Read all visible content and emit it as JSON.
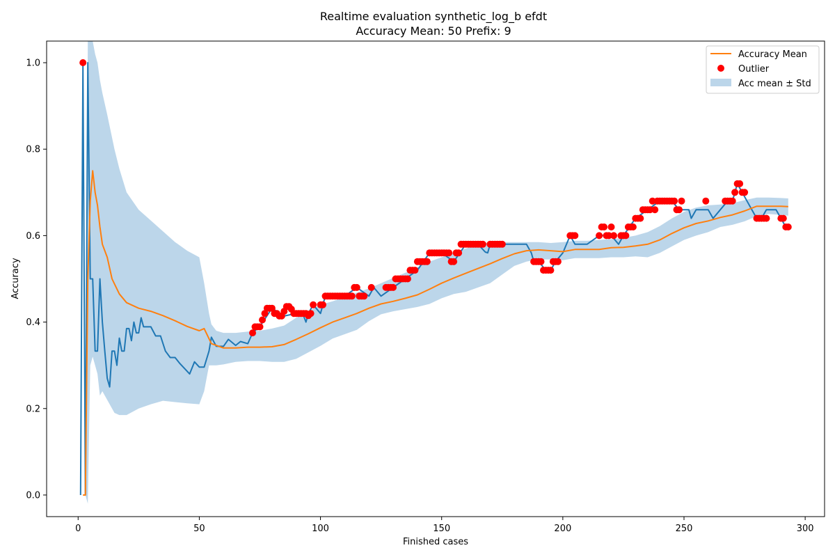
{
  "chart_data": {
    "type": "line",
    "title": "Realtime evaluation synthetic_log_b efdt",
    "subtitle": "Accuracy Mean: 50 Prefix: 9",
    "xlabel": "Finished cases",
    "ylabel": "Accuracy",
    "xlim": [
      -13,
      308
    ],
    "ylim": [
      -0.05,
      1.05
    ],
    "xticks": [
      0,
      50,
      100,
      150,
      200,
      250,
      300
    ],
    "yticks": [
      0.0,
      0.2,
      0.4,
      0.6,
      0.8,
      1.0
    ],
    "xtick_labels": [
      "0",
      "50",
      "100",
      "150",
      "200",
      "250",
      "300"
    ],
    "ytick_labels": [
      "0.0",
      "0.2",
      "0.4",
      "0.6",
      "0.8",
      "1.0"
    ],
    "grid": false,
    "legend_position": "top-right",
    "colors": {
      "accuracy": "#1f77b4",
      "mean": "#ff7f0e",
      "outlier": "#ff0000",
      "band": "#bcd6ea"
    },
    "legend": {
      "mean": "Accuracy Mean",
      "outlier": "Outlier",
      "band": "Acc mean ± Std"
    },
    "series": [
      {
        "key": "accuracy",
        "x": [
          1,
          2,
          3,
          4,
          5,
          6,
          7,
          8,
          9,
          10,
          11,
          12,
          13,
          14,
          15,
          16,
          17,
          18,
          19,
          20,
          21,
          22,
          23,
          24,
          25,
          26,
          27,
          28,
          30,
          32,
          34,
          36,
          38,
          40,
          42,
          44,
          46,
          48,
          50,
          52,
          54,
          55,
          57,
          60,
          62,
          65,
          67,
          70,
          72,
          75,
          80,
          85,
          90,
          93,
          94,
          95,
          97,
          100,
          102,
          105,
          110,
          115,
          120,
          122,
          125,
          130,
          135,
          140,
          145,
          150,
          155,
          160,
          165,
          168,
          169,
          170,
          175,
          180,
          185,
          187,
          188,
          190,
          193,
          195,
          197,
          200,
          203,
          205,
          210,
          215,
          220,
          223,
          225,
          230,
          235,
          240,
          245,
          248,
          250,
          252,
          253,
          255,
          258,
          260,
          262,
          265,
          268,
          270,
          272,
          274,
          276,
          278,
          280,
          282,
          284,
          286,
          288,
          290,
          292,
          293
        ],
        "values": [
          0.0,
          1.0,
          0.0,
          1.0,
          0.5,
          0.5,
          0.333,
          0.333,
          0.5,
          0.4,
          0.333,
          0.27,
          0.25,
          0.333,
          0.333,
          0.3,
          0.363,
          0.333,
          0.333,
          0.385,
          0.385,
          0.357,
          0.4,
          0.375,
          0.375,
          0.41,
          0.389,
          0.389,
          0.389,
          0.368,
          0.368,
          0.333,
          0.318,
          0.318,
          0.304,
          0.292,
          0.28,
          0.308,
          0.296,
          0.296,
          0.333,
          0.365,
          0.344,
          0.344,
          0.36,
          0.346,
          0.355,
          0.35,
          0.375,
          0.39,
          0.432,
          0.414,
          0.42,
          0.415,
          0.4,
          0.42,
          0.44,
          0.42,
          0.46,
          0.46,
          0.46,
          0.48,
          0.46,
          0.48,
          0.46,
          0.48,
          0.5,
          0.52,
          0.56,
          0.56,
          0.54,
          0.58,
          0.58,
          0.562,
          0.56,
          0.58,
          0.58,
          0.58,
          0.58,
          0.56,
          0.54,
          0.54,
          0.52,
          0.52,
          0.54,
          0.56,
          0.6,
          0.58,
          0.58,
          0.6,
          0.6,
          0.58,
          0.6,
          0.64,
          0.66,
          0.68,
          0.68,
          0.66,
          0.66,
          0.66,
          0.64,
          0.66,
          0.66,
          0.66,
          0.64,
          0.66,
          0.68,
          0.68,
          0.72,
          0.7,
          0.68,
          0.66,
          0.64,
          0.64,
          0.66,
          0.66,
          0.66,
          0.64,
          0.62,
          0.62
        ]
      },
      {
        "key": "mean",
        "x": [
          2,
          3,
          4,
          5,
          6,
          7,
          8,
          9,
          10,
          12,
          14,
          17,
          20,
          25,
          30,
          35,
          40,
          45,
          50,
          52,
          55,
          60,
          65,
          70,
          75,
          80,
          85,
          90,
          95,
          100,
          105,
          110,
          115,
          120,
          125,
          130,
          135,
          140,
          145,
          150,
          155,
          160,
          165,
          170,
          175,
          180,
          185,
          190,
          195,
          200,
          205,
          210,
          215,
          220,
          225,
          230,
          235,
          240,
          245,
          250,
          255,
          260,
          265,
          270,
          275,
          280,
          285,
          290,
          293
        ],
        "values": [
          0.0,
          0.0,
          0.5,
          0.68,
          0.75,
          0.7,
          0.67,
          0.62,
          0.58,
          0.55,
          0.5,
          0.465,
          0.445,
          0.432,
          0.425,
          0.415,
          0.403,
          0.39,
          0.38,
          0.385,
          0.35,
          0.34,
          0.34,
          0.342,
          0.342,
          0.343,
          0.348,
          0.36,
          0.373,
          0.387,
          0.4,
          0.41,
          0.42,
          0.432,
          0.442,
          0.448,
          0.455,
          0.463,
          0.476,
          0.49,
          0.502,
          0.513,
          0.524,
          0.535,
          0.547,
          0.558,
          0.565,
          0.567,
          0.565,
          0.563,
          0.568,
          0.568,
          0.568,
          0.572,
          0.573,
          0.576,
          0.58,
          0.59,
          0.605,
          0.618,
          0.628,
          0.634,
          0.642,
          0.648,
          0.657,
          0.668,
          0.668,
          0.668,
          0.667
        ]
      },
      {
        "key": "band",
        "x": [
          2,
          3,
          4,
          5,
          6,
          7,
          8,
          9,
          10,
          12,
          15,
          17,
          20,
          25,
          30,
          35,
          40,
          45,
          50,
          52,
          54,
          55,
          57,
          60,
          65,
          70,
          75,
          80,
          85,
          90,
          95,
          100,
          105,
          110,
          115,
          120,
          125,
          130,
          135,
          140,
          145,
          150,
          155,
          160,
          165,
          170,
          175,
          180,
          185,
          190,
          195,
          200,
          205,
          210,
          215,
          220,
          225,
          230,
          235,
          240,
          245,
          250,
          255,
          260,
          265,
          270,
          275,
          280,
          285,
          290,
          293
        ],
        "upper": [
          0.0,
          0.0,
          1.05,
          1.08,
          1.05,
          1.02,
          1.0,
          0.96,
          0.93,
          0.88,
          0.8,
          0.755,
          0.7,
          0.66,
          0.635,
          0.61,
          0.585,
          0.565,
          0.55,
          0.49,
          0.42,
          0.395,
          0.38,
          0.375,
          0.375,
          0.378,
          0.38,
          0.385,
          0.392,
          0.41,
          0.425,
          0.44,
          0.448,
          0.458,
          0.468,
          0.478,
          0.49,
          0.502,
          0.514,
          0.527,
          0.54,
          0.55,
          0.56,
          0.57,
          0.58,
          0.585,
          0.585,
          0.585,
          0.585,
          0.585,
          0.583,
          0.585,
          0.588,
          0.588,
          0.59,
          0.592,
          0.595,
          0.6,
          0.608,
          0.622,
          0.64,
          0.655,
          0.665,
          0.67,
          0.672,
          0.675,
          0.682,
          0.688,
          0.688,
          0.687,
          0.686
        ],
        "lower": [
          0.0,
          0.0,
          -0.02,
          0.3,
          0.32,
          0.3,
          0.28,
          0.23,
          0.24,
          0.22,
          0.19,
          0.185,
          0.185,
          0.2,
          0.21,
          0.218,
          0.215,
          0.212,
          0.21,
          0.24,
          0.3,
          0.3,
          0.3,
          0.302,
          0.308,
          0.31,
          0.31,
          0.308,
          0.308,
          0.315,
          0.33,
          0.345,
          0.362,
          0.372,
          0.382,
          0.402,
          0.418,
          0.425,
          0.43,
          0.435,
          0.442,
          0.455,
          0.465,
          0.47,
          0.48,
          0.49,
          0.51,
          0.53,
          0.54,
          0.545,
          0.545,
          0.543,
          0.548,
          0.548,
          0.548,
          0.55,
          0.55,
          0.552,
          0.55,
          0.56,
          0.575,
          0.59,
          0.6,
          0.608,
          0.62,
          0.625,
          0.633,
          0.645,
          0.65,
          0.648,
          0.646
        ]
      },
      {
        "key": "outlier",
        "x": [
          2,
          72,
          73,
          74,
          75,
          76,
          77,
          78,
          79,
          80,
          81,
          82,
          83,
          84,
          85,
          86,
          87,
          88,
          89,
          90,
          91,
          92,
          93,
          94,
          95,
          96,
          97,
          100,
          101,
          102,
          103,
          104,
          105,
          106,
          107,
          108,
          109,
          110,
          111,
          112,
          113,
          114,
          115,
          116,
          117,
          118,
          121,
          127,
          128,
          129,
          130,
          131,
          132,
          133,
          134,
          135,
          136,
          137,
          138,
          139,
          140,
          141,
          142,
          143,
          144,
          145,
          146,
          147,
          148,
          149,
          150,
          151,
          152,
          153,
          154,
          155,
          156,
          157,
          158,
          159,
          160,
          161,
          162,
          163,
          164,
          165,
          166,
          167,
          170,
          171,
          172,
          173,
          174,
          175,
          188,
          189,
          190,
          191,
          192,
          193,
          194,
          195,
          196,
          197,
          198,
          203,
          204,
          205,
          215,
          216,
          217,
          218,
          219,
          220,
          221,
          224,
          225,
          226,
          227,
          228,
          229,
          230,
          231,
          232,
          233,
          234,
          235,
          236,
          237,
          238,
          239,
          240,
          241,
          242,
          243,
          244,
          245,
          246,
          247,
          248,
          249,
          259,
          267,
          268,
          269,
          270,
          271,
          272,
          273,
          274,
          275,
          280,
          281,
          282,
          283,
          284,
          290,
          291,
          292,
          293
        ],
        "values": [
          1.0,
          0.375,
          0.389,
          0.389,
          0.389,
          0.405,
          0.42,
          0.432,
          0.432,
          0.432,
          0.42,
          0.42,
          0.414,
          0.414,
          0.425,
          0.436,
          0.436,
          0.43,
          0.42,
          0.42,
          0.42,
          0.42,
          0.42,
          0.42,
          0.415,
          0.42,
          0.44,
          0.44,
          0.44,
          0.46,
          0.46,
          0.46,
          0.46,
          0.46,
          0.46,
          0.46,
          0.46,
          0.46,
          0.46,
          0.46,
          0.46,
          0.48,
          0.48,
          0.46,
          0.46,
          0.46,
          0.48,
          0.48,
          0.48,
          0.48,
          0.48,
          0.5,
          0.5,
          0.5,
          0.5,
          0.5,
          0.5,
          0.52,
          0.52,
          0.52,
          0.54,
          0.54,
          0.54,
          0.54,
          0.54,
          0.56,
          0.56,
          0.56,
          0.56,
          0.56,
          0.56,
          0.56,
          0.56,
          0.56,
          0.54,
          0.54,
          0.56,
          0.56,
          0.58,
          0.58,
          0.58,
          0.58,
          0.58,
          0.58,
          0.58,
          0.58,
          0.58,
          0.58,
          0.58,
          0.58,
          0.58,
          0.58,
          0.58,
          0.58,
          0.54,
          0.54,
          0.54,
          0.54,
          0.52,
          0.52,
          0.52,
          0.52,
          0.54,
          0.54,
          0.54,
          0.6,
          0.6,
          0.6,
          0.6,
          0.62,
          0.62,
          0.6,
          0.6,
          0.62,
          0.6,
          0.6,
          0.6,
          0.6,
          0.62,
          0.62,
          0.62,
          0.64,
          0.64,
          0.64,
          0.66,
          0.66,
          0.66,
          0.66,
          0.68,
          0.66,
          0.68,
          0.68,
          0.68,
          0.68,
          0.68,
          0.68,
          0.68,
          0.68,
          0.66,
          0.66,
          0.68,
          0.68,
          0.68,
          0.68,
          0.68,
          0.68,
          0.7,
          0.72,
          0.72,
          0.7,
          0.7,
          0.64,
          0.64,
          0.64,
          0.64,
          0.64,
          0.64,
          0.64,
          0.62,
          0.62
        ]
      }
    ]
  }
}
